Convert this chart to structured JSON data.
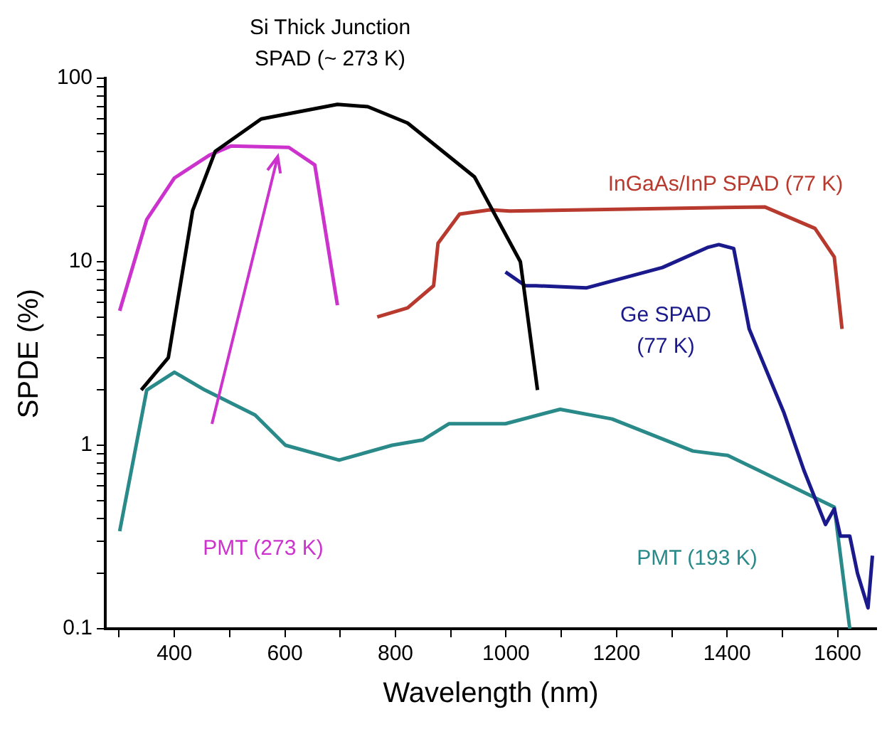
{
  "chart_data": {
    "type": "line",
    "xlabel": "Wavelength (nm)",
    "ylabel": "SPDE (%)",
    "log": "y",
    "grid": false,
    "legend": false,
    "xlim": [
      275,
      1670
    ],
    "ylim": [
      0.1,
      100
    ],
    "xticks": [
      {
        "value": 300,
        "label": null
      },
      400,
      {
        "value": 500,
        "label": null
      },
      600,
      {
        "value": 700,
        "label": null
      },
      800,
      {
        "value": 900,
        "label": null
      },
      1000,
      {
        "value": 1100,
        "label": null
      },
      1200,
      {
        "value": 1300,
        "label": null
      },
      1400,
      {
        "value": 1500,
        "label": null
      },
      1600
    ],
    "yticks": [
      0.1,
      {
        "value": 0.2,
        "label": null
      },
      {
        "value": 0.3,
        "label": null
      },
      {
        "value": 0.4,
        "label": null
      },
      {
        "value": 0.5,
        "label": null
      },
      {
        "value": 0.6,
        "label": null
      },
      {
        "value": 0.7,
        "label": null
      },
      {
        "value": 0.8,
        "label": null
      },
      {
        "value": 0.9,
        "label": null
      },
      1,
      {
        "value": 2,
        "label": null
      },
      {
        "value": 3,
        "label": null
      },
      {
        "value": 4,
        "label": null
      },
      {
        "value": 5,
        "label": null
      },
      {
        "value": 6,
        "label": null
      },
      {
        "value": 7,
        "label": null
      },
      {
        "value": 8,
        "label": null
      },
      {
        "value": 9,
        "label": null
      },
      10,
      {
        "value": 20,
        "label": null
      },
      {
        "value": 30,
        "label": null
      },
      {
        "value": 40,
        "label": null
      },
      {
        "value": 50,
        "label": null
      },
      {
        "value": 60,
        "label": null
      },
      {
        "value": 70,
        "label": null
      },
      {
        "value": 80,
        "label": null
      },
      {
        "value": 90,
        "label": null
      },
      100
    ],
    "series": [
      {
        "name": "Si Thick Junction SPAD (~ 273 K)",
        "color": "#000000",
        "x": [
          340,
          389,
          433,
          474,
          557,
          695,
          750,
          822,
          943,
          1026,
          1057
        ],
        "values": [
          2,
          3,
          19,
          40,
          60,
          72,
          70,
          57,
          29,
          10,
          2
        ]
      },
      {
        "name": "PMT (273 K)",
        "color": "#cc33cc",
        "x": [
          301,
          350,
          400,
          463,
          502,
          607,
          654,
          695
        ],
        "values": [
          5.4,
          17,
          28.6,
          38,
          42.7,
          42,
          33.7,
          5.8
        ]
      },
      {
        "name": "InGaAs/InP SPAD (77 K)",
        "color": "#b83a2e",
        "x": [
          767,
          822,
          869,
          877,
          916,
          971,
          1007,
          1468,
          1559,
          1594,
          1608
        ],
        "values": [
          5,
          5.6,
          7.4,
          12.6,
          18.2,
          19.2,
          18.9,
          19.9,
          15.2,
          10.6,
          4.3
        ]
      },
      {
        "name": "Ge SPAD (77 K)",
        "color": "#1a1a8c",
        "x": [
          999,
          1035,
          1054,
          1145,
          1283,
          1366,
          1385,
          1412,
          1440,
          1503,
          1539,
          1578,
          1594,
          1605,
          1622,
          1636,
          1655,
          1663
        ],
        "values": [
          8.8,
          7.4,
          7.4,
          7.2,
          9.3,
          12,
          12.4,
          11.8,
          4.3,
          1.5,
          0.73,
          0.37,
          0.45,
          0.32,
          0.32,
          0.2,
          0.13,
          0.25
        ]
      },
      {
        "name": "PMT (193 K)",
        "color": "#2a8a8a",
        "x": [
          301,
          350,
          400,
          455,
          546,
          601,
          698,
          794,
          850,
          897,
          999,
          1098,
          1192,
          1338,
          1401,
          1457,
          1594,
          1622
        ],
        "values": [
          0.34,
          2,
          2.5,
          2,
          1.46,
          1,
          0.83,
          1,
          1.07,
          1.31,
          1.31,
          1.57,
          1.39,
          0.93,
          0.88,
          0.73,
          0.46,
          0.1
        ]
      }
    ]
  }
}
